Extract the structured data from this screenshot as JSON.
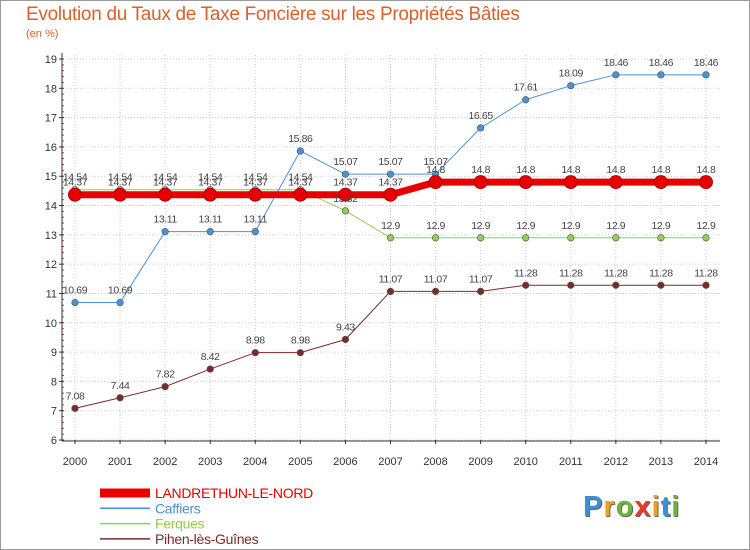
{
  "logo": {
    "letters": [
      {
        "ch": "P",
        "color": "#3a8fd6"
      },
      {
        "ch": "r",
        "color": "#f0a020"
      },
      {
        "ch": "o",
        "color": "#6cb43a"
      },
      {
        "ch": "x",
        "color": "#e83a2a"
      },
      {
        "ch": "i",
        "color": "#f0a020"
      },
      {
        "ch": "t",
        "color": "#3a8fd6"
      },
      {
        "ch": "i",
        "color": "#6cb43a"
      }
    ]
  },
  "chart_data": {
    "type": "line",
    "title": "Evolution du Taux de Taxe Foncière sur les Propriétés Bâties",
    "subtitle": "(en %)",
    "xlabel": "",
    "ylabel": "",
    "ylim": [
      6,
      19
    ],
    "yticks": [
      "6",
      "7",
      "8",
      "9",
      "10",
      "11",
      "12",
      "13",
      "14",
      "15",
      "16",
      "17",
      "18",
      "19"
    ],
    "categories": [
      "2000",
      "2001",
      "2002",
      "2003",
      "2004",
      "2005",
      "2006",
      "2007",
      "2008",
      "2009",
      "2010",
      "2011",
      "2012",
      "2013",
      "2014"
    ],
    "grid": true,
    "legend_position": "bottom-left",
    "colors": {
      "title": "#d9612a",
      "axis": "#333333",
      "grid": "#cccccc",
      "tick_red": "#e03030"
    },
    "series": [
      {
        "name": "Pihen-lès-Guînes",
        "color": "#7a2a2a",
        "stroke": 1,
        "values": [
          7.08,
          7.44,
          7.82,
          8.42,
          8.98,
          8.98,
          9.43,
          11.07,
          11.07,
          11.07,
          11.28,
          11.28,
          11.28,
          11.28,
          11.28
        ],
        "labels": [
          "7.08",
          "7.44",
          "7.82",
          "8.42",
          "8.98",
          "8.98",
          "9.43",
          "11.07",
          "11.07",
          "11.07",
          "11.28",
          "11.28",
          "11.28",
          "11.28",
          "11.28"
        ]
      },
      {
        "name": "Ferques",
        "color": "#8fcf52",
        "stroke": 1,
        "values": [
          14.54,
          14.54,
          14.54,
          14.54,
          14.54,
          14.54,
          13.82,
          12.9,
          12.9,
          12.9,
          12.9,
          12.9,
          12.9,
          12.9,
          12.9
        ],
        "labels": [
          "14.54",
          "14.54",
          "14.54",
          "14.54",
          "14.54",
          "14.54",
          "13.82",
          "12.9",
          "12.9",
          "12.9",
          "12.9",
          "12.9",
          "12.9",
          "12.9",
          "12.9"
        ]
      },
      {
        "name": "Caffiers",
        "color": "#4a92d2",
        "stroke": 1,
        "values": [
          10.69,
          10.69,
          13.11,
          13.11,
          13.11,
          15.86,
          15.07,
          15.07,
          15.07,
          16.65,
          17.61,
          18.09,
          18.46,
          18.46,
          18.46
        ],
        "labels": [
          "10.69",
          "10.69",
          "13.11",
          "13.11",
          "13.11",
          "15.86",
          "15.07",
          "15.07",
          "15.07",
          "16.65",
          "17.61",
          "18.09",
          "18.46",
          "18.46",
          "18.46"
        ]
      },
      {
        "name": "LANDRETHUN-LE-NORD",
        "color": "#e80000",
        "stroke": 7,
        "values": [
          14.37,
          14.37,
          14.37,
          14.37,
          14.37,
          14.37,
          14.37,
          14.37,
          14.8,
          14.8,
          14.8,
          14.8,
          14.8,
          14.8,
          14.8
        ],
        "labels": [
          "14.37",
          "14.37",
          "14.37",
          "14.37",
          "14.37",
          "14.37",
          "14.37",
          "14.37",
          "14.8",
          "14.8",
          "14.8",
          "14.8",
          "14.8",
          "14.8",
          "14.8"
        ]
      }
    ],
    "legend_order": [
      "LANDRETHUN-LE-NORD",
      "Caffiers",
      "Ferques",
      "Pihen-lès-Guînes"
    ]
  }
}
